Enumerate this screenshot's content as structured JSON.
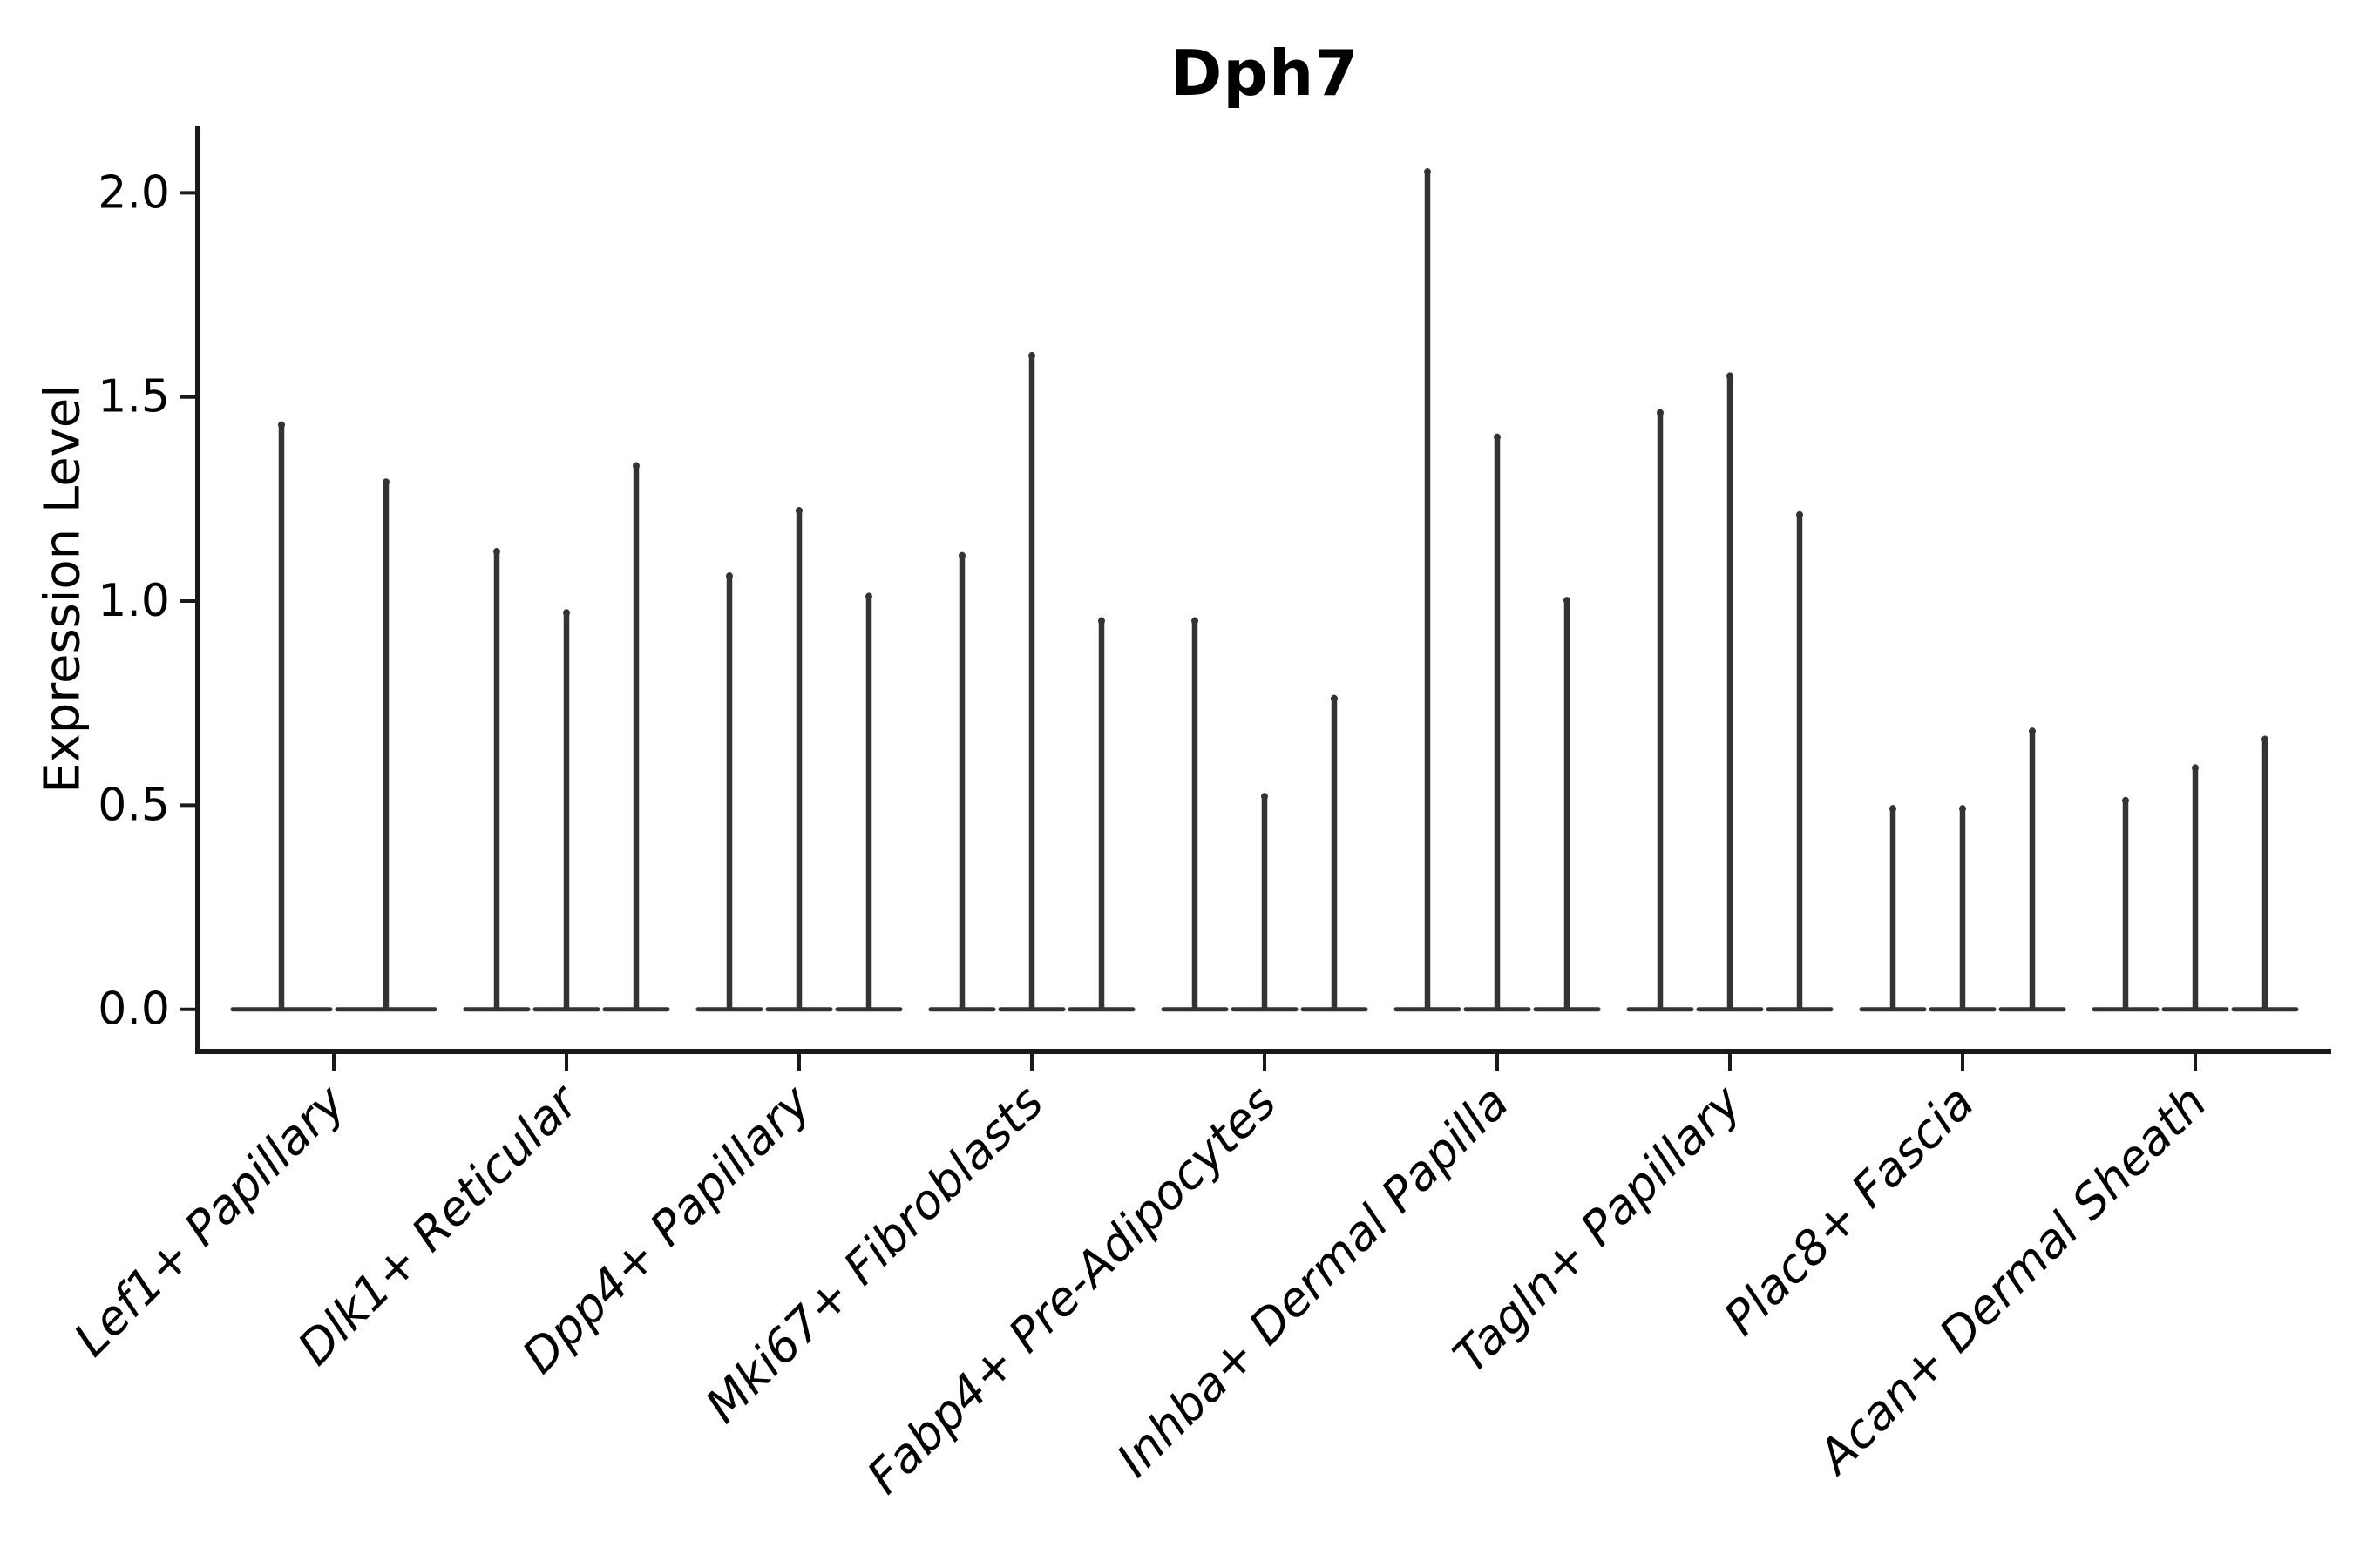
{
  "chart_data": {
    "type": "violin",
    "title": "Dph7",
    "ylabel": "Expression Level",
    "xlabel": "",
    "ytick_values": [
      0.0,
      0.5,
      1.0,
      1.5,
      2.0
    ],
    "ytick_labels": [
      "0.0",
      "0.5",
      "1.0",
      "1.5",
      "2.0"
    ],
    "ylim": [
      -0.103,
      2.163
    ],
    "grid": false,
    "legend_position": "none",
    "violin_shape": "flat base at 0 with thin vertical spike to max value",
    "colors": {
      "violin": "#333333",
      "spine": "#1a1a1a",
      "text": "#000000",
      "background": "#ffffff"
    },
    "groups": [
      {
        "label": "Lef1+ Papillary",
        "spike_maxima": [
          1.44,
          1.3
        ]
      },
      {
        "label": "Dlk1+ Reticular",
        "spike_maxima": [
          1.13,
          0.98,
          1.34
        ]
      },
      {
        "label": "Dpp4+ Papillary",
        "spike_maxima": [
          1.07,
          1.23,
          1.02
        ]
      },
      {
        "label": "Mki67+ Fibroblasts",
        "spike_maxima": [
          1.12,
          1.61,
          0.96
        ]
      },
      {
        "label": "Fabp4+ Pre-Adipocytes",
        "spike_maxima": [
          0.96,
          0.53,
          0.77
        ]
      },
      {
        "label": "Inhba+ Dermal Papilla",
        "spike_maxima": [
          2.06,
          1.41,
          1.01
        ]
      },
      {
        "label": "Tagln+ Papillary",
        "spike_maxima": [
          1.47,
          1.56,
          1.22
        ]
      },
      {
        "label": "Plac8+ Fascia",
        "spike_maxima": [
          0.5,
          0.5,
          0.69
        ]
      },
      {
        "label": "Acan+ Dermal Sheath",
        "spike_maxima": [
          0.52,
          0.6,
          0.67
        ]
      }
    ]
  }
}
